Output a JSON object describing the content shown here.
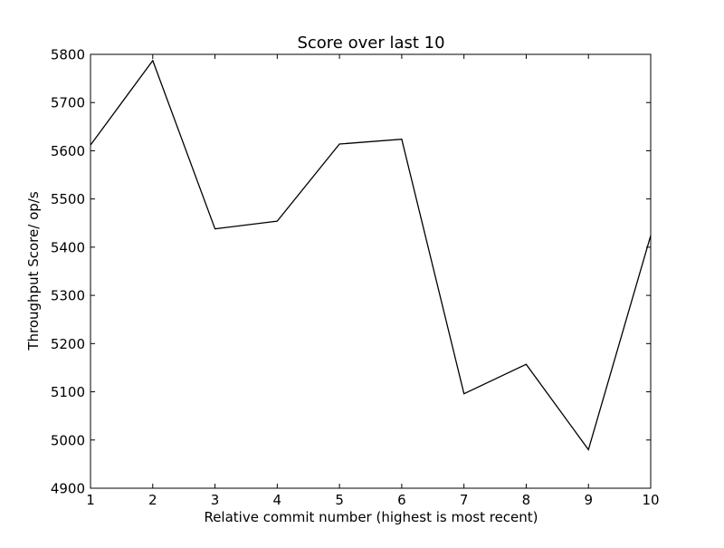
{
  "chart_data": {
    "type": "line",
    "title": "Score over last 10",
    "xlabel": "Relative commit number (highest is most recent)",
    "ylabel": "Throughput Score/ op/s",
    "xlim": [
      1,
      10
    ],
    "ylim": [
      4900,
      5800
    ],
    "grid": false,
    "x_ticks": [
      1,
      2,
      3,
      4,
      5,
      6,
      7,
      8,
      9,
      10
    ],
    "y_ticks": [
      4900,
      5000,
      5100,
      5200,
      5300,
      5400,
      5500,
      5600,
      5700,
      5800
    ],
    "line_color": "#000000",
    "series": [
      {
        "x": [
          1,
          2,
          3,
          4,
          5,
          6,
          7,
          8,
          9,
          10
        ],
        "y": [
          5612,
          5787,
          5438,
          5454,
          5614,
          5624,
          5096,
          5157,
          4980,
          5424
        ]
      }
    ]
  }
}
